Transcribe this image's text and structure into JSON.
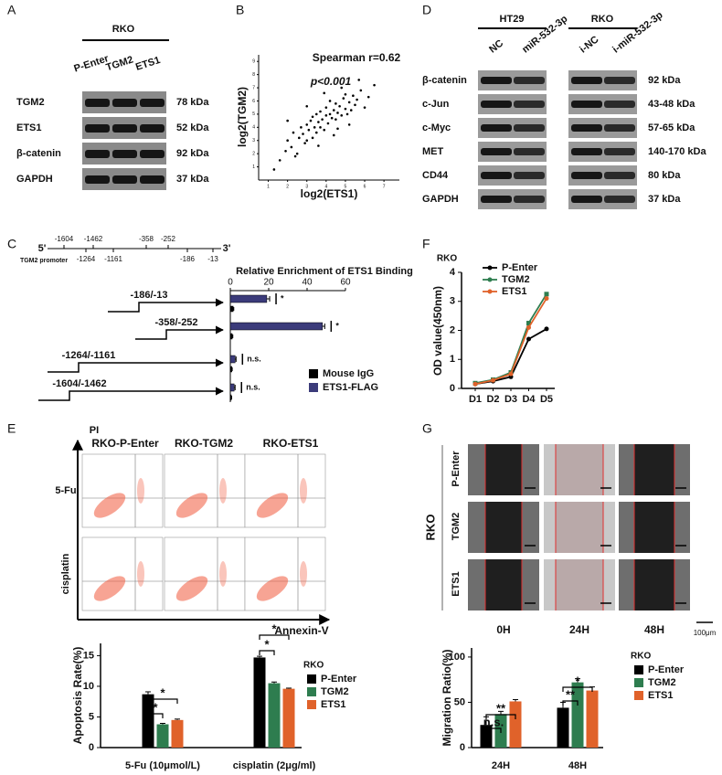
{
  "panel_labels": [
    "A",
    "B",
    "C",
    "D",
    "E",
    "F",
    "G"
  ],
  "A": {
    "cell_line": "RKO",
    "lanes": [
      "P-Enter",
      "TGM2",
      "ETS1"
    ],
    "rows": [
      {
        "protein": "TGM2",
        "size": "78 kDa"
      },
      {
        "protein": "ETS1",
        "size": "52 kDa"
      },
      {
        "protein": "β-catenin",
        "size": "92 kDa"
      },
      {
        "protein": "GAPDH",
        "size": "37 kDa"
      }
    ]
  },
  "D": {
    "groups": [
      {
        "name": "HT29",
        "lanes": [
          "NC",
          "miR-532-3p"
        ]
      },
      {
        "name": "RKO",
        "lanes": [
          "i-NC",
          "i-miR-532-3p"
        ]
      }
    ],
    "rows": [
      {
        "protein": "β-catenin",
        "size": "92 kDa"
      },
      {
        "protein": "c-Jun",
        "size": "43-48 kDa"
      },
      {
        "protein": "c-Myc",
        "size": "57-65 kDa"
      },
      {
        "protein": "MET",
        "size": "140-170 kDa"
      },
      {
        "protein": "CD44",
        "size": "80 kDa"
      },
      {
        "protein": "GAPDH",
        "size": "37 kDa"
      }
    ]
  },
  "C_promoter": {
    "label": "TGM2 promoter",
    "five_prime": "5'",
    "three_prime": "3'",
    "top_sites": [
      "-1604",
      "-1462",
      "-358",
      "-252"
    ],
    "bottom_sites": [
      "-1264",
      "-1161",
      "-186",
      "-13"
    ]
  },
  "E_flow": {
    "y_axis": "PI",
    "x_axis": "Annexin-V",
    "columns": [
      "RKO-P-Enter",
      "RKO-TGM2",
      "RKO-ETS1"
    ],
    "rows": [
      "5-Fu",
      "cisplatin"
    ]
  },
  "G_images": {
    "cell_line": "RKO",
    "rows": [
      "P-Enter",
      "TGM2",
      "ETS1"
    ],
    "columns": [
      "0H",
      "24H",
      "48H"
    ],
    "scale_bar": "100μm"
  },
  "chart_data": [
    {
      "type": "scatter",
      "xlabel": "log2(ETS1)",
      "ylabel": "log2(TGM2)",
      "annotations": [
        "Spearman r=0.62",
        "p<0.001"
      ],
      "color": "#000000",
      "x": [
        1.6,
        1.9,
        2.0,
        2.2,
        2.3,
        2.5,
        2.6,
        2.7,
        2.8,
        2.9,
        3.0,
        3.0,
        3.1,
        3.2,
        3.3,
        3.3,
        3.4,
        3.5,
        3.5,
        3.6,
        3.7,
        3.7,
        3.8,
        3.9,
        4.0,
        4.0,
        4.1,
        4.2,
        4.2,
        4.3,
        4.4,
        4.5,
        4.5,
        4.6,
        4.7,
        4.8,
        4.9,
        5.0,
        5.0,
        5.1,
        5.2,
        5.3,
        5.4,
        5.5,
        5.6,
        5.8,
        6.0,
        6.2,
        6.5,
        2.4,
        3.6,
        4.4,
        5.2,
        3.0,
        4.8,
        2.0,
        5.7,
        3.9,
        4.6,
        1.3
      ],
      "values": [
        1.5,
        2.2,
        3.0,
        2.5,
        3.6,
        2.0,
        3.2,
        4.0,
        3.5,
        2.8,
        4.2,
        3.0,
        3.8,
        4.5,
        3.2,
        4.8,
        4.0,
        3.6,
        5.0,
        4.4,
        4.0,
        5.2,
        4.6,
        3.8,
        4.9,
        5.5,
        4.3,
        5.0,
        6.0,
        4.7,
        5.3,
        4.6,
        5.8,
        5.1,
        5.6,
        4.9,
        6.2,
        5.4,
        6.5,
        5.0,
        5.9,
        5.3,
        6.4,
        5.7,
        6.1,
        6.8,
        5.5,
        6.3,
        7.2,
        1.8,
        2.6,
        3.4,
        4.2,
        5.6,
        7.0,
        4.5,
        7.6,
        6.6,
        3.9,
        0.8
      ],
      "xlim": [
        0.5,
        7.8
      ],
      "ylim": [
        0,
        9.5
      ],
      "xticks": [
        1,
        2,
        3,
        4,
        5,
        6,
        7
      ],
      "yticks": [
        1,
        2,
        3,
        4,
        5,
        6,
        7,
        8,
        9
      ]
    },
    {
      "type": "hbar",
      "title": "Relative Enrichment of ETS1 Binding",
      "categories": [
        "-186/-13",
        "-358/-252",
        "-1264/-1161",
        "-1604/-1462"
      ],
      "series": [
        {
          "name": "Mouse IgG",
          "color": "#000000",
          "values": [
            1.5,
            1,
            0.8,
            0.5
          ],
          "errors": [
            0.3,
            0.3,
            0.2,
            0.2
          ]
        },
        {
          "name": "ETS1-FLAG",
          "color": "#3b3b7a",
          "values": [
            19,
            48,
            2.5,
            2
          ],
          "errors": [
            1.5,
            1.2,
            0.5,
            0.5
          ]
        }
      ],
      "xlim": [
        0,
        60
      ],
      "xticks": [
        0,
        20,
        40,
        60
      ],
      "annotations": [
        "*",
        "*",
        "n.s.",
        "n.s."
      ]
    },
    {
      "type": "line",
      "legend_title": "RKO",
      "ylabel": "OD value(450nm)",
      "categories": [
        "D1",
        "D2",
        "D3",
        "D4",
        "D5"
      ],
      "series": [
        {
          "name": "P-Enter",
          "color": "#000000",
          "values": [
            0.15,
            0.25,
            0.4,
            1.7,
            2.05
          ]
        },
        {
          "name": "TGM2",
          "color": "#2e7d4f",
          "values": [
            0.18,
            0.3,
            0.55,
            2.25,
            3.25
          ]
        },
        {
          "name": "ETS1",
          "color": "#e0622a",
          "values": [
            0.15,
            0.28,
            0.5,
            2.1,
            3.1
          ]
        }
      ],
      "ylim": [
        0,
        4
      ],
      "yticks": [
        0,
        1,
        2,
        3,
        4
      ]
    },
    {
      "type": "bar",
      "legend_title": "RKO",
      "ylabel": "Apoptosis Rate(%)",
      "categories": [
        "5-Fu (10μmol/L)",
        "cisplatin (2μg/ml)"
      ],
      "series": [
        {
          "name": "P-Enter",
          "color": "#000000",
          "values": [
            8.7,
            14.7
          ],
          "errors": [
            0.4,
            0.2
          ]
        },
        {
          "name": "TGM2",
          "color": "#2e7d4f",
          "values": [
            3.8,
            10.5
          ],
          "errors": [
            0.15,
            0.2
          ]
        },
        {
          "name": "ETS1",
          "color": "#e0622a",
          "values": [
            4.5,
            9.6
          ],
          "errors": [
            0.15,
            0.1
          ]
        }
      ],
      "ylim": [
        0,
        17
      ],
      "yticks": [
        0,
        5,
        10,
        15
      ],
      "annotations": [
        "*",
        "*",
        "*",
        "*"
      ]
    },
    {
      "type": "bar",
      "legend_title": "RKO",
      "ylabel": "Migration Ratio(%)",
      "categories": [
        "24H",
        "48H"
      ],
      "series": [
        {
          "name": "P-Enter",
          "color": "#000000",
          "values": [
            25,
            44
          ],
          "errors": [
            9,
            6
          ]
        },
        {
          "name": "TGM2",
          "color": "#2e7d4f",
          "values": [
            37,
            72
          ],
          "errors": [
            3,
            4
          ]
        },
        {
          "name": "ETS1",
          "color": "#e0622a",
          "values": [
            51,
            63
          ],
          "errors": [
            2,
            4
          ]
        }
      ],
      "ylim": [
        0,
        110
      ],
      "yticks": [
        0,
        50,
        100
      ],
      "annotations": [
        "n.s.",
        "**",
        "*",
        "**"
      ]
    }
  ]
}
